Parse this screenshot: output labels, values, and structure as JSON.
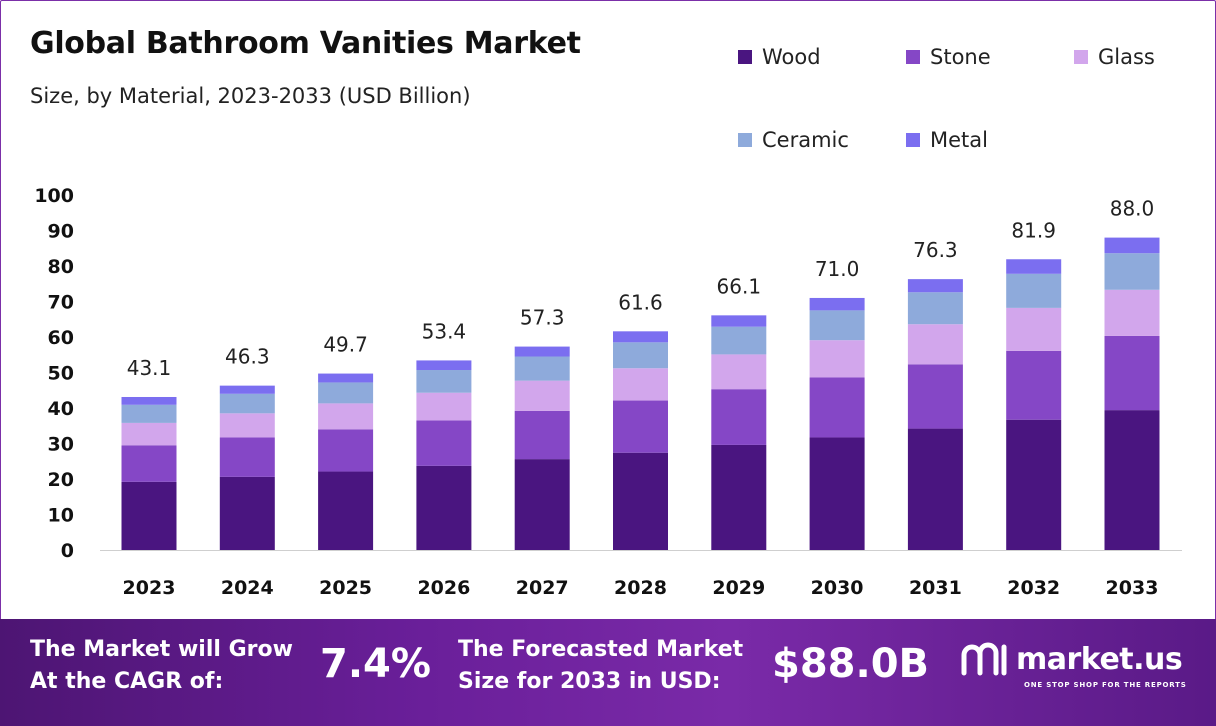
{
  "header": {
    "title": "Global Bathroom Vanities Market",
    "subtitle": "Size, by Material, 2023-2033 (USD Billion)"
  },
  "colors": {
    "Wood": "#4a1580",
    "Stone": "#8547c6",
    "Glass": "#d2a6ec",
    "Ceramic": "#8eaadb",
    "Metal": "#7b6ef0",
    "footer_start": "#4d1573",
    "footer_end": "#7a2aa8"
  },
  "chart_data": {
    "type": "bar",
    "stacked": true,
    "categories": [
      "2023",
      "2024",
      "2025",
      "2026",
      "2027",
      "2028",
      "2029",
      "2030",
      "2031",
      "2032",
      "2033"
    ],
    "series": [
      {
        "name": "Wood",
        "values": [
          19.2,
          20.6,
          22.1,
          23.7,
          25.6,
          27.4,
          29.6,
          31.7,
          34.2,
          36.7,
          39.4
        ]
      },
      {
        "name": "Stone",
        "values": [
          10.3,
          11.1,
          11.9,
          12.8,
          13.6,
          14.7,
          15.7,
          16.9,
          18.1,
          19.4,
          20.9
        ]
      },
      {
        "name": "Glass",
        "values": [
          6.3,
          6.8,
          7.3,
          7.8,
          8.5,
          9.1,
          9.8,
          10.5,
          11.3,
          12.1,
          13.0
        ]
      },
      {
        "name": "Ceramic",
        "values": [
          5.1,
          5.5,
          5.9,
          6.4,
          6.8,
          7.3,
          7.8,
          8.4,
          9.0,
          9.6,
          10.3
        ]
      },
      {
        "name": "Metal",
        "values": [
          2.2,
          2.3,
          2.5,
          2.7,
          2.8,
          3.1,
          3.2,
          3.5,
          3.7,
          4.1,
          4.4
        ]
      }
    ],
    "totals": [
      "43.1",
      "46.3",
      "49.7",
      "53.4",
      "57.3",
      "61.6",
      "66.1",
      "71.0",
      "76.3",
      "81.9",
      "88.0"
    ],
    "yticks": [
      "0",
      "10",
      "20",
      "30",
      "40",
      "50",
      "60",
      "70",
      "80",
      "90",
      "100"
    ],
    "ylim": [
      0,
      100
    ],
    "grid": false,
    "legend": "top-right"
  },
  "legend": {
    "items": [
      {
        "label": "Wood",
        "color": "#4a1580"
      },
      {
        "label": "Stone",
        "color": "#8547c6"
      },
      {
        "label": "Glass",
        "color": "#d2a6ec"
      },
      {
        "label": "Ceramic",
        "color": "#8eaadb"
      },
      {
        "label": "Metal",
        "color": "#7b6ef0"
      }
    ]
  },
  "footer": {
    "cagr_line1": "The Market will Grow",
    "cagr_line2": "At the CAGR of:",
    "cagr_value": "7.4%",
    "forecast_line1": "The Forecasted Market",
    "forecast_line2": "Size for 2033 in USD:",
    "forecast_value": "$88.0B",
    "brand_name": "market.us",
    "brand_tagline": "ONE STOP SHOP FOR THE REPORTS"
  }
}
